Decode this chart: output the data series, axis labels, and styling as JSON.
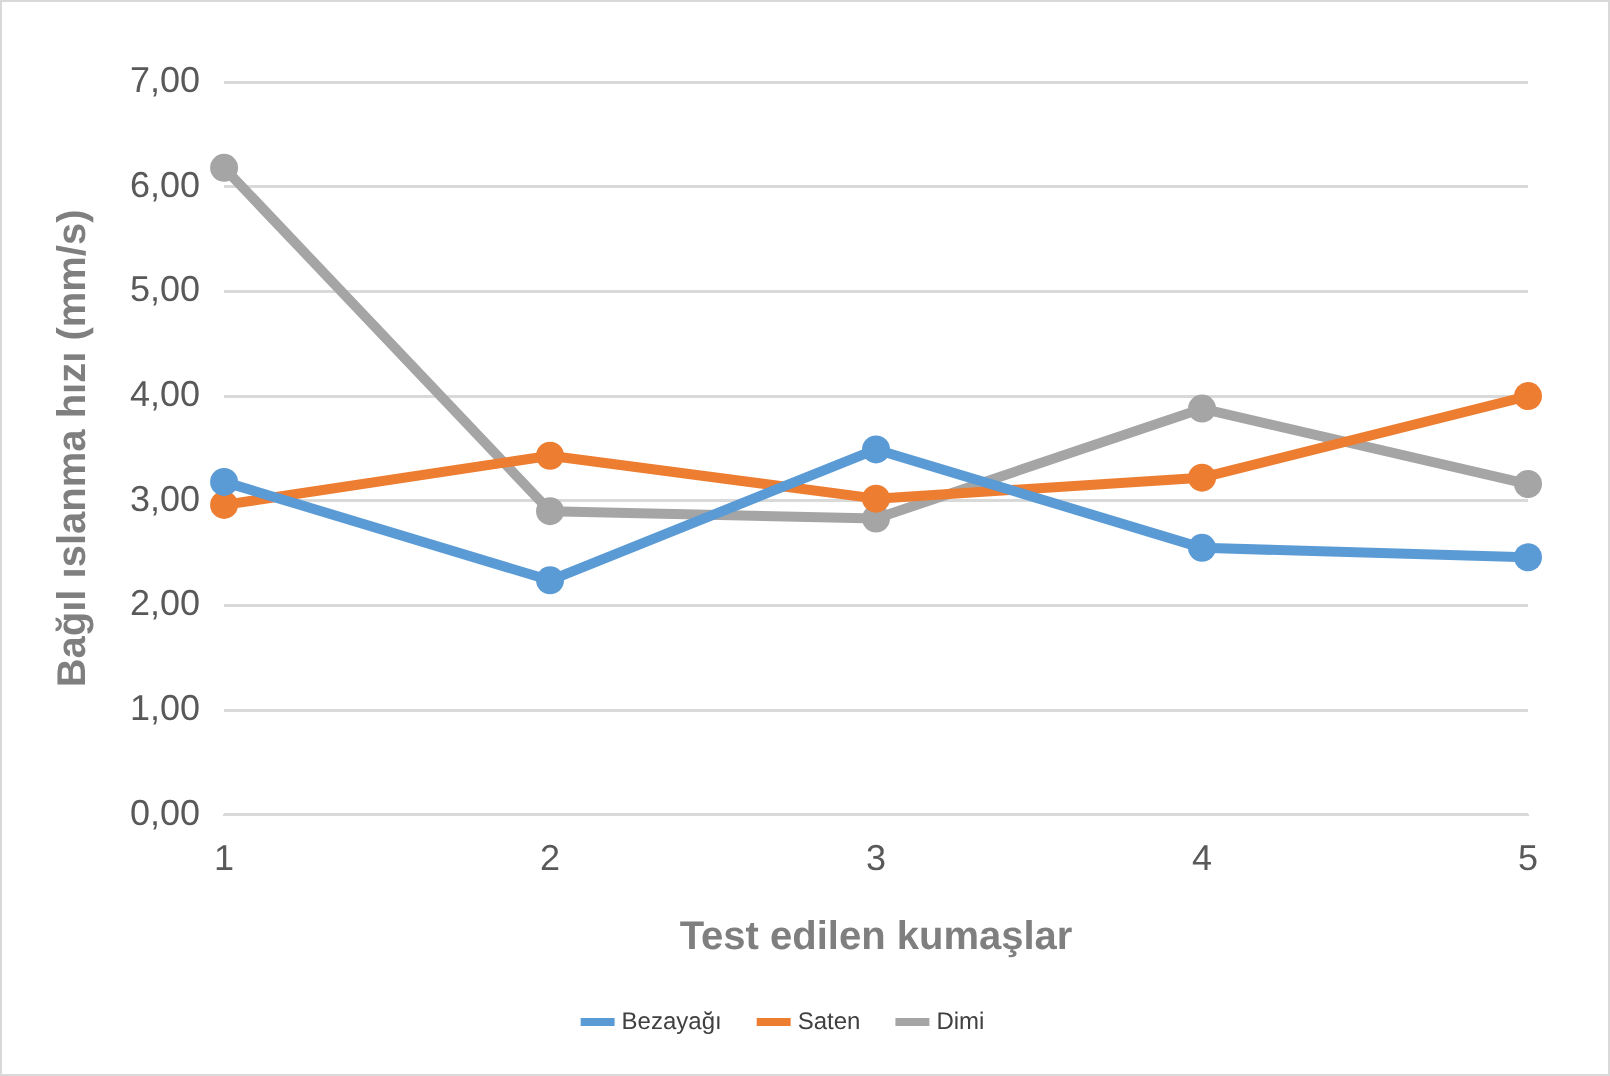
{
  "chart_data": {
    "type": "line",
    "xlabel": "Test edilen kumaşlar",
    "ylabel": "Bağıl ıslanma hızı (mm/s)",
    "categories": [
      "1",
      "2",
      "3",
      "4",
      "5"
    ],
    "series": [
      {
        "name": "Bezayağı",
        "color": "#5b9bd5",
        "values": [
          3.18,
          2.24,
          3.49,
          2.55,
          2.46
        ]
      },
      {
        "name": "Saten",
        "color": "#ed7d31",
        "values": [
          2.96,
          3.43,
          3.02,
          3.22,
          4.0
        ]
      },
      {
        "name": "Dimi",
        "color": "#a5a5a5",
        "values": [
          6.18,
          2.9,
          2.83,
          3.88,
          3.16
        ]
      }
    ],
    "ylim": [
      0,
      7
    ],
    "yticks": [
      {
        "value": 0,
        "label": "0,00"
      },
      {
        "value": 1,
        "label": "1,00"
      },
      {
        "value": 2,
        "label": "2,00"
      },
      {
        "value": 3,
        "label": "3,00"
      },
      {
        "value": 4,
        "label": "4,00"
      },
      {
        "value": 5,
        "label": "5,00"
      },
      {
        "value": 6,
        "label": "6,00"
      },
      {
        "value": 7,
        "label": "7,00"
      }
    ],
    "grid": "y",
    "legend": "bottom",
    "marker": "circle",
    "line_style": "solid"
  }
}
